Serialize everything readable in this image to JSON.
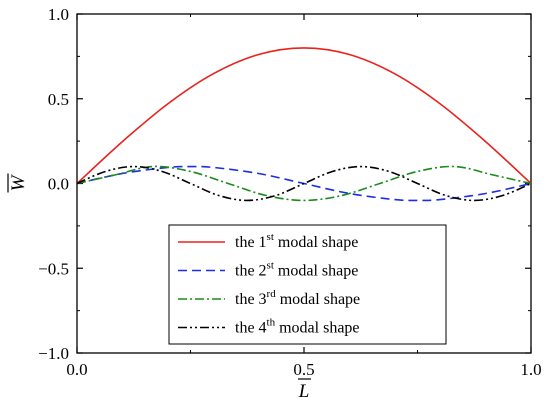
{
  "chart_data": {
    "type": "line",
    "xlabel": "L",
    "ylabel": "W",
    "xlim": [
      0.0,
      1.0
    ],
    "ylim": [
      -1.0,
      1.0
    ],
    "x_ticks": [
      "0.0",
      "0.5",
      "1.0"
    ],
    "y_ticks": [
      "-1.0",
      "-0.5",
      "0.0",
      "0.5",
      "1.0"
    ],
    "grid": false,
    "legend_placement": "bottom-center",
    "series": [
      {
        "name_parts": [
          "the 1",
          "st",
          " modal shape"
        ],
        "color": "#e8231c",
        "style": "solid",
        "x": [
          0.0,
          0.1,
          0.2,
          0.3,
          0.4,
          0.5,
          0.6,
          0.7,
          0.8,
          0.9,
          1.0
        ],
        "y": [
          0.0,
          0.247,
          0.47,
          0.647,
          0.761,
          0.8,
          0.761,
          0.647,
          0.47,
          0.247,
          0.0
        ]
      },
      {
        "name_parts": [
          "the 2",
          "st",
          " modal shape"
        ],
        "color": "#1c2ce8",
        "style": "dashed",
        "x": [
          0.0,
          0.1,
          0.2,
          0.25,
          0.3,
          0.4,
          0.5,
          0.6,
          0.7,
          0.75,
          0.8,
          0.9,
          1.0
        ],
        "y": [
          0.0,
          0.059,
          0.095,
          0.1,
          0.095,
          0.059,
          0.0,
          -0.059,
          -0.095,
          -0.1,
          -0.095,
          -0.059,
          0.0
        ]
      },
      {
        "name_parts": [
          "the 3",
          "rd",
          " modal shape"
        ],
        "color": "#1a8a1a",
        "style": "dashdot",
        "x": [
          0.0,
          0.083,
          0.167,
          0.25,
          0.333,
          0.417,
          0.5,
          0.583,
          0.667,
          0.75,
          0.833,
          0.917,
          1.0
        ],
        "y": [
          0.0,
          0.05,
          0.1,
          0.071,
          0.0,
          -0.071,
          -0.1,
          -0.071,
          0.0,
          0.071,
          0.1,
          0.05,
          0.0
        ]
      },
      {
        "name_parts": [
          "the 4",
          "th",
          " modal shape"
        ],
        "color": "#000000",
        "style": "dashdotdot",
        "x": [
          0.0,
          0.0625,
          0.125,
          0.1875,
          0.25,
          0.3125,
          0.375,
          0.4375,
          0.5,
          0.5625,
          0.625,
          0.6875,
          0.75,
          0.8125,
          0.875,
          0.9375,
          1.0
        ],
        "y": [
          0.0,
          0.071,
          0.1,
          0.071,
          0.0,
          -0.071,
          -0.1,
          -0.071,
          0.0,
          0.071,
          0.1,
          0.071,
          0.0,
          -0.071,
          -0.1,
          -0.071,
          0.0
        ]
      }
    ]
  }
}
